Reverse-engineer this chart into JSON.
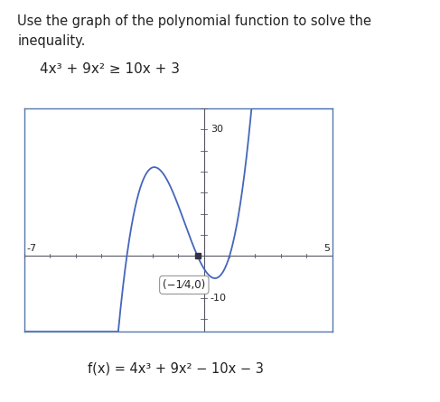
{
  "title_line1": "Use the graph of the polynomial function to solve the",
  "title_line2": "inequality.",
  "inequality": "4x³ + 9x² ≥ 10x + 3",
  "func_label": "f(x) = 4x³ + 9x² − 10x − 3",
  "xlim": [
    -7,
    5
  ],
  "ylim": [
    -18,
    35
  ],
  "x_label_neg7": "-7",
  "x_label_5": "5",
  "y_label_30": "30",
  "y_label_neg10": "-10",
  "point_label": "(−1⁄4,0)",
  "point_x": -0.25,
  "point_y": 0,
  "curve_color": "#4466bb",
  "point_color": "#333344",
  "bg_color": "#ffffff",
  "border_color": "#5577aa",
  "axis_color": "#555566",
  "font_color": "#222222",
  "title_fontsize": 10.5,
  "ineq_fontsize": 11,
  "tick_fontsize": 8,
  "func_fontsize": 10.5
}
